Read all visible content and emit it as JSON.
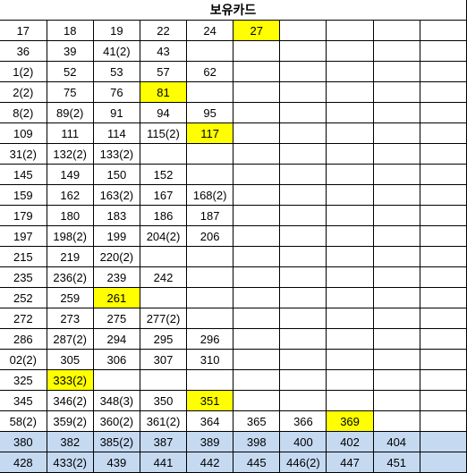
{
  "title": "보유카드",
  "columns_count": 10,
  "highlight_color": "#ffff00",
  "alt_bg_color": "#c5d9f1",
  "text_color": "#000000",
  "font_size": 13,
  "title_font_size": 14,
  "rows": [
    [
      {
        "v": "17"
      },
      {
        "v": "18"
      },
      {
        "v": "19"
      },
      {
        "v": "22"
      },
      {
        "v": "24"
      },
      {
        "v": "27",
        "hl": true
      },
      {
        "v": ""
      },
      {
        "v": ""
      },
      {
        "v": ""
      },
      {
        "v": ""
      }
    ],
    [
      {
        "v": "36"
      },
      {
        "v": "39"
      },
      {
        "v": "41(2)"
      },
      {
        "v": "43"
      },
      {
        "v": ""
      },
      {
        "v": ""
      },
      {
        "v": ""
      },
      {
        "v": ""
      },
      {
        "v": ""
      },
      {
        "v": ""
      }
    ],
    [
      {
        "v": "1(2)"
      },
      {
        "v": "52"
      },
      {
        "v": "53"
      },
      {
        "v": "57"
      },
      {
        "v": "62"
      },
      {
        "v": ""
      },
      {
        "v": ""
      },
      {
        "v": ""
      },
      {
        "v": ""
      },
      {
        "v": ""
      }
    ],
    [
      {
        "v": "2(2)"
      },
      {
        "v": "75"
      },
      {
        "v": "76"
      },
      {
        "v": "81",
        "hl": true
      },
      {
        "v": ""
      },
      {
        "v": ""
      },
      {
        "v": ""
      },
      {
        "v": ""
      },
      {
        "v": ""
      },
      {
        "v": ""
      }
    ],
    [
      {
        "v": "8(2)"
      },
      {
        "v": "89(2)"
      },
      {
        "v": "91"
      },
      {
        "v": "94"
      },
      {
        "v": "95"
      },
      {
        "v": ""
      },
      {
        "v": ""
      },
      {
        "v": ""
      },
      {
        "v": ""
      },
      {
        "v": ""
      }
    ],
    [
      {
        "v": "109"
      },
      {
        "v": "111"
      },
      {
        "v": "114"
      },
      {
        "v": "115(2)"
      },
      {
        "v": "117",
        "hl": true
      },
      {
        "v": ""
      },
      {
        "v": ""
      },
      {
        "v": ""
      },
      {
        "v": ""
      },
      {
        "v": ""
      }
    ],
    [
      {
        "v": "31(2)"
      },
      {
        "v": "132(2)"
      },
      {
        "v": "133(2)"
      },
      {
        "v": ""
      },
      {
        "v": ""
      },
      {
        "v": ""
      },
      {
        "v": ""
      },
      {
        "v": ""
      },
      {
        "v": ""
      },
      {
        "v": ""
      }
    ],
    [
      {
        "v": "145"
      },
      {
        "v": "149"
      },
      {
        "v": "150"
      },
      {
        "v": "152"
      },
      {
        "v": ""
      },
      {
        "v": ""
      },
      {
        "v": ""
      },
      {
        "v": ""
      },
      {
        "v": ""
      },
      {
        "v": ""
      }
    ],
    [
      {
        "v": "159"
      },
      {
        "v": "162"
      },
      {
        "v": "163(2)"
      },
      {
        "v": "167"
      },
      {
        "v": "168(2)"
      },
      {
        "v": ""
      },
      {
        "v": ""
      },
      {
        "v": ""
      },
      {
        "v": ""
      },
      {
        "v": ""
      }
    ],
    [
      {
        "v": "179"
      },
      {
        "v": "180"
      },
      {
        "v": "183"
      },
      {
        "v": "186"
      },
      {
        "v": "187"
      },
      {
        "v": ""
      },
      {
        "v": ""
      },
      {
        "v": ""
      },
      {
        "v": ""
      },
      {
        "v": ""
      }
    ],
    [
      {
        "v": "197"
      },
      {
        "v": "198(2)"
      },
      {
        "v": "199"
      },
      {
        "v": "204(2)"
      },
      {
        "v": "206"
      },
      {
        "v": ""
      },
      {
        "v": ""
      },
      {
        "v": ""
      },
      {
        "v": ""
      },
      {
        "v": ""
      }
    ],
    [
      {
        "v": "215"
      },
      {
        "v": "219"
      },
      {
        "v": "220(2)"
      },
      {
        "v": ""
      },
      {
        "v": ""
      },
      {
        "v": ""
      },
      {
        "v": ""
      },
      {
        "v": ""
      },
      {
        "v": ""
      },
      {
        "v": ""
      }
    ],
    [
      {
        "v": "235"
      },
      {
        "v": "236(2)"
      },
      {
        "v": "239"
      },
      {
        "v": "242"
      },
      {
        "v": ""
      },
      {
        "v": ""
      },
      {
        "v": ""
      },
      {
        "v": ""
      },
      {
        "v": ""
      },
      {
        "v": ""
      }
    ],
    [
      {
        "v": "252"
      },
      {
        "v": "259"
      },
      {
        "v": "261",
        "hl": true
      },
      {
        "v": ""
      },
      {
        "v": ""
      },
      {
        "v": ""
      },
      {
        "v": ""
      },
      {
        "v": ""
      },
      {
        "v": ""
      },
      {
        "v": ""
      }
    ],
    [
      {
        "v": "272"
      },
      {
        "v": "273"
      },
      {
        "v": "275"
      },
      {
        "v": "277(2)"
      },
      {
        "v": ""
      },
      {
        "v": ""
      },
      {
        "v": ""
      },
      {
        "v": ""
      },
      {
        "v": ""
      },
      {
        "v": ""
      }
    ],
    [
      {
        "v": "286"
      },
      {
        "v": "287(2)"
      },
      {
        "v": "294"
      },
      {
        "v": "295"
      },
      {
        "v": "296"
      },
      {
        "v": ""
      },
      {
        "v": ""
      },
      {
        "v": ""
      },
      {
        "v": ""
      },
      {
        "v": ""
      }
    ],
    [
      {
        "v": "02(2)"
      },
      {
        "v": "305"
      },
      {
        "v": "306"
      },
      {
        "v": "307"
      },
      {
        "v": "310"
      },
      {
        "v": ""
      },
      {
        "v": ""
      },
      {
        "v": ""
      },
      {
        "v": ""
      },
      {
        "v": ""
      }
    ],
    [
      {
        "v": "325"
      },
      {
        "v": "333(2)",
        "hl": true
      },
      {
        "v": ""
      },
      {
        "v": ""
      },
      {
        "v": ""
      },
      {
        "v": ""
      },
      {
        "v": ""
      },
      {
        "v": ""
      },
      {
        "v": ""
      },
      {
        "v": ""
      }
    ],
    [
      {
        "v": "345"
      },
      {
        "v": "346(2)"
      },
      {
        "v": "348(3)"
      },
      {
        "v": "350"
      },
      {
        "v": "351",
        "hl": true
      },
      {
        "v": ""
      },
      {
        "v": ""
      },
      {
        "v": ""
      },
      {
        "v": ""
      },
      {
        "v": ""
      }
    ],
    [
      {
        "v": "58(2)"
      },
      {
        "v": "359(2)"
      },
      {
        "v": "360(2)"
      },
      {
        "v": "361(2)"
      },
      {
        "v": "364"
      },
      {
        "v": "365"
      },
      {
        "v": "366"
      },
      {
        "v": "369",
        "hl": true
      },
      {
        "v": ""
      },
      {
        "v": ""
      }
    ],
    [
      {
        "v": "380",
        "bg": true
      },
      {
        "v": "382",
        "bg": true
      },
      {
        "v": "385(2)",
        "bg": true
      },
      {
        "v": "387",
        "bg": true
      },
      {
        "v": "389",
        "bg": true
      },
      {
        "v": "398",
        "bg": true
      },
      {
        "v": "400",
        "bg": true
      },
      {
        "v": "402",
        "bg": true
      },
      {
        "v": "404",
        "bg": true
      },
      {
        "v": "",
        "bg": true
      }
    ],
    [
      {
        "v": "428",
        "bg": true
      },
      {
        "v": "433(2)",
        "bg": true
      },
      {
        "v": "439",
        "bg": true
      },
      {
        "v": "441",
        "bg": true
      },
      {
        "v": "442",
        "bg": true
      },
      {
        "v": "445",
        "bg": true
      },
      {
        "v": "446(2)",
        "bg": true
      },
      {
        "v": "447",
        "bg": true
      },
      {
        "v": "451",
        "bg": true
      },
      {
        "v": "",
        "bg": true
      }
    ]
  ]
}
